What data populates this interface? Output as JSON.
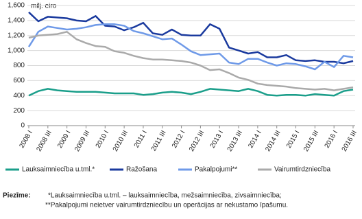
{
  "chart_data": {
    "type": "line",
    "ylabel": "milj. eiro",
    "categories": [
      "2008 I",
      null,
      "2008 III",
      null,
      "2009 I",
      null,
      "2009 III",
      null,
      "2010 I",
      null,
      "2010 III",
      null,
      "2011 I",
      null,
      "2011 III",
      null,
      "2012 I",
      null,
      "2012 III",
      null,
      "2013 I",
      null,
      "2013 III",
      null,
      "2014 I",
      null,
      "2014 III",
      null,
      "2015 I",
      null,
      "2015 III",
      null,
      "2016 I",
      null,
      "2016 III"
    ],
    "series": [
      {
        "name": "Lauksaimniecība u.tml.*",
        "color": "#1a9e8a",
        "values": [
          400,
          460,
          490,
          470,
          460,
          450,
          450,
          450,
          440,
          430,
          430,
          430,
          410,
          420,
          440,
          450,
          440,
          420,
          450,
          490,
          480,
          470,
          460,
          490,
          460,
          410,
          400,
          410,
          410,
          400,
          420,
          410,
          400,
          460,
          480
        ]
      },
      {
        "name": "Ražošana",
        "color": "#1a3a9e",
        "values": [
          1510,
          1390,
          1450,
          1440,
          1430,
          1400,
          1390,
          1460,
          1330,
          1320,
          1270,
          1310,
          1370,
          1230,
          1210,
          1280,
          1210,
          1200,
          1200,
          1350,
          1290,
          1040,
          1000,
          960,
          980,
          910,
          910,
          940,
          870,
          860,
          870,
          850,
          850,
          830,
          860
        ]
      },
      {
        "name": "Pakalpojumi**",
        "color": "#6f9ae8",
        "values": [
          1050,
          1250,
          1320,
          1300,
          1280,
          1290,
          1310,
          1340,
          1350,
          1350,
          1330,
          1260,
          1230,
          1190,
          1150,
          1160,
          1080,
          990,
          940,
          950,
          960,
          840,
          820,
          890,
          890,
          840,
          800,
          830,
          820,
          790,
          750,
          850,
          780,
          930,
          910
        ]
      },
      {
        "name": "Vairumtirdzniecība",
        "color": "#aaaaaa",
        "values": [
          1170,
          1200,
          1210,
          1220,
          1250,
          1150,
          1100,
          1060,
          1050,
          990,
          970,
          930,
          900,
          880,
          880,
          870,
          860,
          840,
          800,
          740,
          750,
          700,
          640,
          610,
          560,
          540,
          530,
          520,
          500,
          490,
          480,
          490,
          470,
          490,
          510
        ]
      }
    ],
    "ylim": [
      0,
      1600
    ],
    "yticks": [
      0,
      200,
      400,
      600,
      800,
      {
        "value": 1000,
        "label": "1,000"
      },
      {
        "value": 1200,
        "label": "1,200"
      },
      {
        "value": 1400,
        "label": "1,400"
      },
      {
        "value": 1600,
        "label": "1,600"
      }
    ],
    "grid": true,
    "legend": "bottom"
  },
  "notes": {
    "label": "Piezīme:",
    "lines": [
      "*Lauksaimniecība u.tml. – lauksaimniecība,  mežsaimniecība, zivsaimniecība;",
      "**Pakalpojumi neietver vairumtirdzniecību un operācijas ar nekustamo īpašumu."
    ]
  }
}
